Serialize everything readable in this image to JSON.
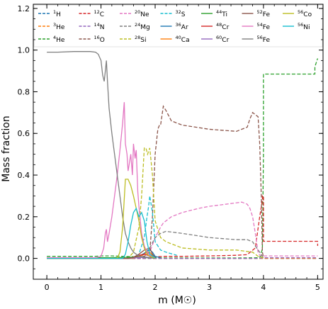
{
  "chart_data": {
    "type": "line",
    "xlabel": "m (M☉)",
    "ylabel": "Mass fraction",
    "xlim": [
      -0.25,
      5.1
    ],
    "ylim": [
      -0.1,
      1.22
    ],
    "xticks": [
      "0",
      "1",
      "2",
      "3",
      "4",
      "5"
    ],
    "xtick_values": [
      0,
      1,
      2,
      3,
      4,
      5
    ],
    "yticks": [
      "0.0",
      "0.2",
      "0.4",
      "0.6",
      "0.8",
      "1.0",
      "1.2"
    ],
    "ytick_values": [
      0.0,
      0.2,
      0.4,
      0.6,
      0.8,
      1.0,
      1.2
    ],
    "grid": false,
    "legend_placement": "top",
    "series": [
      {
        "name": "1H",
        "mass": "1",
        "symbol": "H",
        "color": "#1f77b4",
        "dash": true,
        "x": [
          0,
          5
        ],
        "y": [
          0,
          0
        ]
      },
      {
        "name": "3He",
        "mass": "3",
        "symbol": "He",
        "color": "#ff7f0e",
        "dash": true,
        "x": [
          0,
          5
        ],
        "y": [
          0,
          0
        ]
      },
      {
        "name": "4He",
        "mass": "4",
        "symbol": "He",
        "color": "#2ca02c",
        "dash": true,
        "x": [
          0,
          0.3,
          0.6,
          0.9,
          1.0,
          1.2,
          1.4,
          1.6,
          1.8,
          2.0,
          2.2,
          2.5,
          3.0,
          3.5,
          3.9,
          3.95,
          3.98,
          4.0,
          4.0,
          4.5,
          4.95,
          4.95,
          5.0
        ],
        "y": [
          0.01,
          0.01,
          0.01,
          0.01,
          0.012,
          0.012,
          0.01,
          0.008,
          0.005,
          0.003,
          0.002,
          0.002,
          0.002,
          0.002,
          0.003,
          0.01,
          0.05,
          0.5,
          0.885,
          0.885,
          0.885,
          0.92,
          0.96
        ]
      },
      {
        "name": "12C",
        "mass": "12",
        "symbol": "C",
        "color": "#d62728",
        "dash": true,
        "x": [
          0,
          1.8,
          1.9,
          2.0,
          2.2,
          2.5,
          3.0,
          3.5,
          3.7,
          3.85,
          3.93,
          3.98,
          3.98,
          4.0,
          4.0,
          5.0,
          5.0
        ],
        "y": [
          0,
          0,
          0.005,
          0.008,
          0.01,
          0.01,
          0.012,
          0.015,
          0.018,
          0.05,
          0.2,
          0.28,
          0.3,
          0.3,
          0.082,
          0.082,
          0.06
        ]
      },
      {
        "name": "14N",
        "mass": "14",
        "symbol": "N",
        "color": "#9467bd",
        "dash": true,
        "x": [
          0,
          3.9,
          4.0,
          4.5,
          5.0
        ],
        "y": [
          0,
          0,
          0.003,
          0.003,
          0.003
        ]
      },
      {
        "name": "16O",
        "mass": "16",
        "symbol": "O",
        "color": "#8c564b",
        "dash": true,
        "x": [
          0,
          1.3,
          1.6,
          1.8,
          1.9,
          1.95,
          2.0,
          2.05,
          2.08,
          2.1,
          2.15,
          2.2,
          2.3,
          2.5,
          3.0,
          3.5,
          3.7,
          3.75,
          3.8,
          3.85,
          3.9,
          3.93,
          3.96,
          3.98,
          4.0
        ],
        "y": [
          0,
          0,
          0.003,
          0.01,
          0.03,
          0.2,
          0.5,
          0.62,
          0.64,
          0.64,
          0.73,
          0.71,
          0.66,
          0.64,
          0.62,
          0.61,
          0.63,
          0.67,
          0.7,
          0.69,
          0.68,
          0.55,
          0.3,
          0.03,
          0.005
        ]
      },
      {
        "name": "20Ne",
        "mass": "20",
        "symbol": "Ne",
        "color": "#e377c2",
        "dash": true,
        "x": [
          0,
          1.6,
          1.9,
          2.0,
          2.1,
          2.15,
          2.2,
          2.3,
          2.5,
          2.8,
          3.0,
          3.3,
          3.6,
          3.7,
          3.75,
          3.8,
          3.85,
          3.9,
          3.93,
          4.0,
          5.0
        ],
        "y": [
          0,
          0,
          0.03,
          0.1,
          0.15,
          0.17,
          0.18,
          0.2,
          0.22,
          0.24,
          0.25,
          0.26,
          0.27,
          0.26,
          0.24,
          0.2,
          0.12,
          0.03,
          0.015,
          0.012,
          0.012
        ]
      },
      {
        "name": "24Mg",
        "mass": "24",
        "symbol": "Mg",
        "color": "#7f7f7f",
        "dash": true,
        "x": [
          0,
          1.5,
          1.7,
          1.8,
          1.9,
          2.0,
          2.1,
          2.2,
          2.5,
          3.0,
          3.5,
          3.7,
          3.8,
          3.85,
          3.9,
          3.93,
          3.96,
          3.98,
          4.0
        ],
        "y": [
          0,
          0,
          0.005,
          0.02,
          0.05,
          0.1,
          0.12,
          0.13,
          0.12,
          0.1,
          0.09,
          0.09,
          0.08,
          0.06,
          0.04,
          0.03,
          0.02,
          0.01,
          0.005
        ]
      },
      {
        "name": "28Si",
        "mass": "28",
        "symbol": "Si",
        "color": "#bcbd22",
        "dash": true,
        "x": [
          0,
          1.5,
          1.6,
          1.7,
          1.75,
          1.8,
          1.83,
          1.86,
          1.9,
          1.95,
          2.0,
          2.1,
          2.2,
          2.5,
          3.0,
          3.5,
          3.8,
          3.9,
          4.0
        ],
        "y": [
          0,
          0,
          0.03,
          0.15,
          0.3,
          0.53,
          0.53,
          0.5,
          0.53,
          0.4,
          0.18,
          0.1,
          0.08,
          0.05,
          0.04,
          0.04,
          0.03,
          0.01,
          0.003
        ]
      },
      {
        "name": "32S",
        "mass": "32",
        "symbol": "S",
        "color": "#17becf",
        "dash": true,
        "x": [
          0,
          1.6,
          1.7,
          1.8,
          1.85,
          1.88,
          1.9,
          1.95,
          2.0,
          2.1,
          2.2,
          2.4
        ],
        "y": [
          0,
          0,
          0.02,
          0.1,
          0.2,
          0.25,
          0.3,
          0.22,
          0.08,
          0.04,
          0.03,
          0.015
        ]
      },
      {
        "name": "36Ar",
        "mass": "36",
        "symbol": "Ar",
        "color": "#1f77b4",
        "dash": false,
        "x": [
          0,
          1.6,
          1.7,
          1.8,
          1.85,
          1.9,
          1.95,
          2.0,
          2.1
        ],
        "y": [
          0,
          0,
          0.01,
          0.025,
          0.035,
          0.04,
          0.03,
          0.01,
          0.003
        ]
      },
      {
        "name": "40Ca",
        "mass": "40",
        "symbol": "Ca",
        "color": "#ff7f0e",
        "dash": false,
        "x": [
          0,
          1.6,
          1.7,
          1.8,
          1.85,
          1.9,
          1.95,
          2.0
        ],
        "y": [
          0,
          0,
          0.008,
          0.02,
          0.03,
          0.03,
          0.015,
          0.003
        ]
      },
      {
        "name": "44Ti",
        "mass": "44",
        "symbol": "Ti",
        "color": "#2ca02c",
        "dash": false,
        "x": [
          0,
          1.2,
          1.3,
          1.5,
          1.6,
          1.7,
          1.8,
          1.9,
          2.0
        ],
        "y": [
          0.003,
          0.003,
          0.004,
          0.005,
          0.006,
          0.005,
          0.004,
          0.003,
          0.001
        ]
      },
      {
        "name": "48Cr",
        "mass": "48",
        "symbol": "Cr",
        "color": "#d62728",
        "dash": false,
        "x": [
          0,
          1.5,
          1.6,
          1.7,
          1.8,
          1.9,
          2.0
        ],
        "y": [
          0,
          0,
          0.005,
          0.015,
          0.02,
          0.012,
          0.002
        ]
      },
      {
        "name": "60Cr",
        "mass": "60",
        "symbol": "Cr",
        "color": "#9467bd",
        "dash": false,
        "x": [
          0,
          1.5,
          1.7,
          1.85,
          2.0
        ],
        "y": [
          0,
          0,
          0.004,
          0.006,
          0.002
        ]
      },
      {
        "name": "52Fe",
        "mass": "52",
        "symbol": "Fe",
        "color": "#8c564b",
        "dash": false,
        "x": [
          0,
          1.5,
          1.6,
          1.7,
          1.8,
          1.9,
          1.95,
          2.0
        ],
        "y": [
          0,
          0,
          0.005,
          0.02,
          0.04,
          0.05,
          0.02,
          0.003
        ]
      },
      {
        "name": "54Fe",
        "mass": "54",
        "symbol": "Fe",
        "color": "#e377c2",
        "dash": false,
        "x": [
          0,
          0.9,
          1.0,
          1.05,
          1.08,
          1.1,
          1.12,
          1.15,
          1.2,
          1.25,
          1.3,
          1.35,
          1.4,
          1.43,
          1.45,
          1.48,
          1.5,
          1.52,
          1.55,
          1.58,
          1.6,
          1.63,
          1.65,
          1.68,
          1.7,
          1.75,
          1.8,
          1.85,
          1.9,
          2.0
        ],
        "y": [
          0.003,
          0.003,
          0.01,
          0.05,
          0.12,
          0.14,
          0.08,
          0.12,
          0.2,
          0.3,
          0.4,
          0.52,
          0.65,
          0.75,
          0.55,
          0.5,
          0.42,
          0.45,
          0.5,
          0.4,
          0.55,
          0.48,
          0.52,
          0.32,
          0.25,
          0.12,
          0.06,
          0.03,
          0.015,
          0.003
        ]
      },
      {
        "name": "56Fe",
        "mass": "56",
        "symbol": "Fe",
        "color": "#7f7f7f",
        "dash": false,
        "x": [
          0,
          0.2,
          0.5,
          0.8,
          0.9,
          0.95,
          1.0,
          1.03,
          1.06,
          1.08,
          1.1,
          1.12,
          1.15,
          1.2,
          1.25,
          1.3,
          1.35,
          1.4,
          1.45,
          1.5,
          1.55,
          1.6,
          1.65,
          1.7,
          1.8,
          1.9,
          2.0
        ],
        "y": [
          0.99,
          0.99,
          0.993,
          0.993,
          0.99,
          0.98,
          0.95,
          0.88,
          0.85,
          0.9,
          0.95,
          0.85,
          0.72,
          0.6,
          0.5,
          0.4,
          0.3,
          0.2,
          0.12,
          0.08,
          0.05,
          0.03,
          0.02,
          0.012,
          0.006,
          0.003,
          0.001
        ]
      },
      {
        "name": "56Co",
        "mass": "56",
        "symbol": "Co",
        "color": "#bcbd22",
        "dash": false,
        "x": [
          0,
          1.3,
          1.35,
          1.4,
          1.45,
          1.5,
          1.55,
          1.6,
          1.65,
          1.7,
          1.75,
          1.8,
          1.85,
          1.9,
          2.0
        ],
        "y": [
          0,
          0,
          0.03,
          0.15,
          0.38,
          0.38,
          0.35,
          0.3,
          0.24,
          0.18,
          0.1,
          0.05,
          0.02,
          0.01,
          0.002
        ]
      },
      {
        "name": "56Ni",
        "mass": "56",
        "symbol": "Ni",
        "color": "#17becf",
        "dash": false,
        "x": [
          0,
          1.4,
          1.45,
          1.5,
          1.55,
          1.6,
          1.65,
          1.7,
          1.75,
          1.8,
          1.85,
          1.9,
          2.0
        ],
        "y": [
          0,
          0,
          0.02,
          0.08,
          0.16,
          0.22,
          0.24,
          0.2,
          0.22,
          0.18,
          0.08,
          0.02,
          0.003
        ]
      }
    ]
  }
}
